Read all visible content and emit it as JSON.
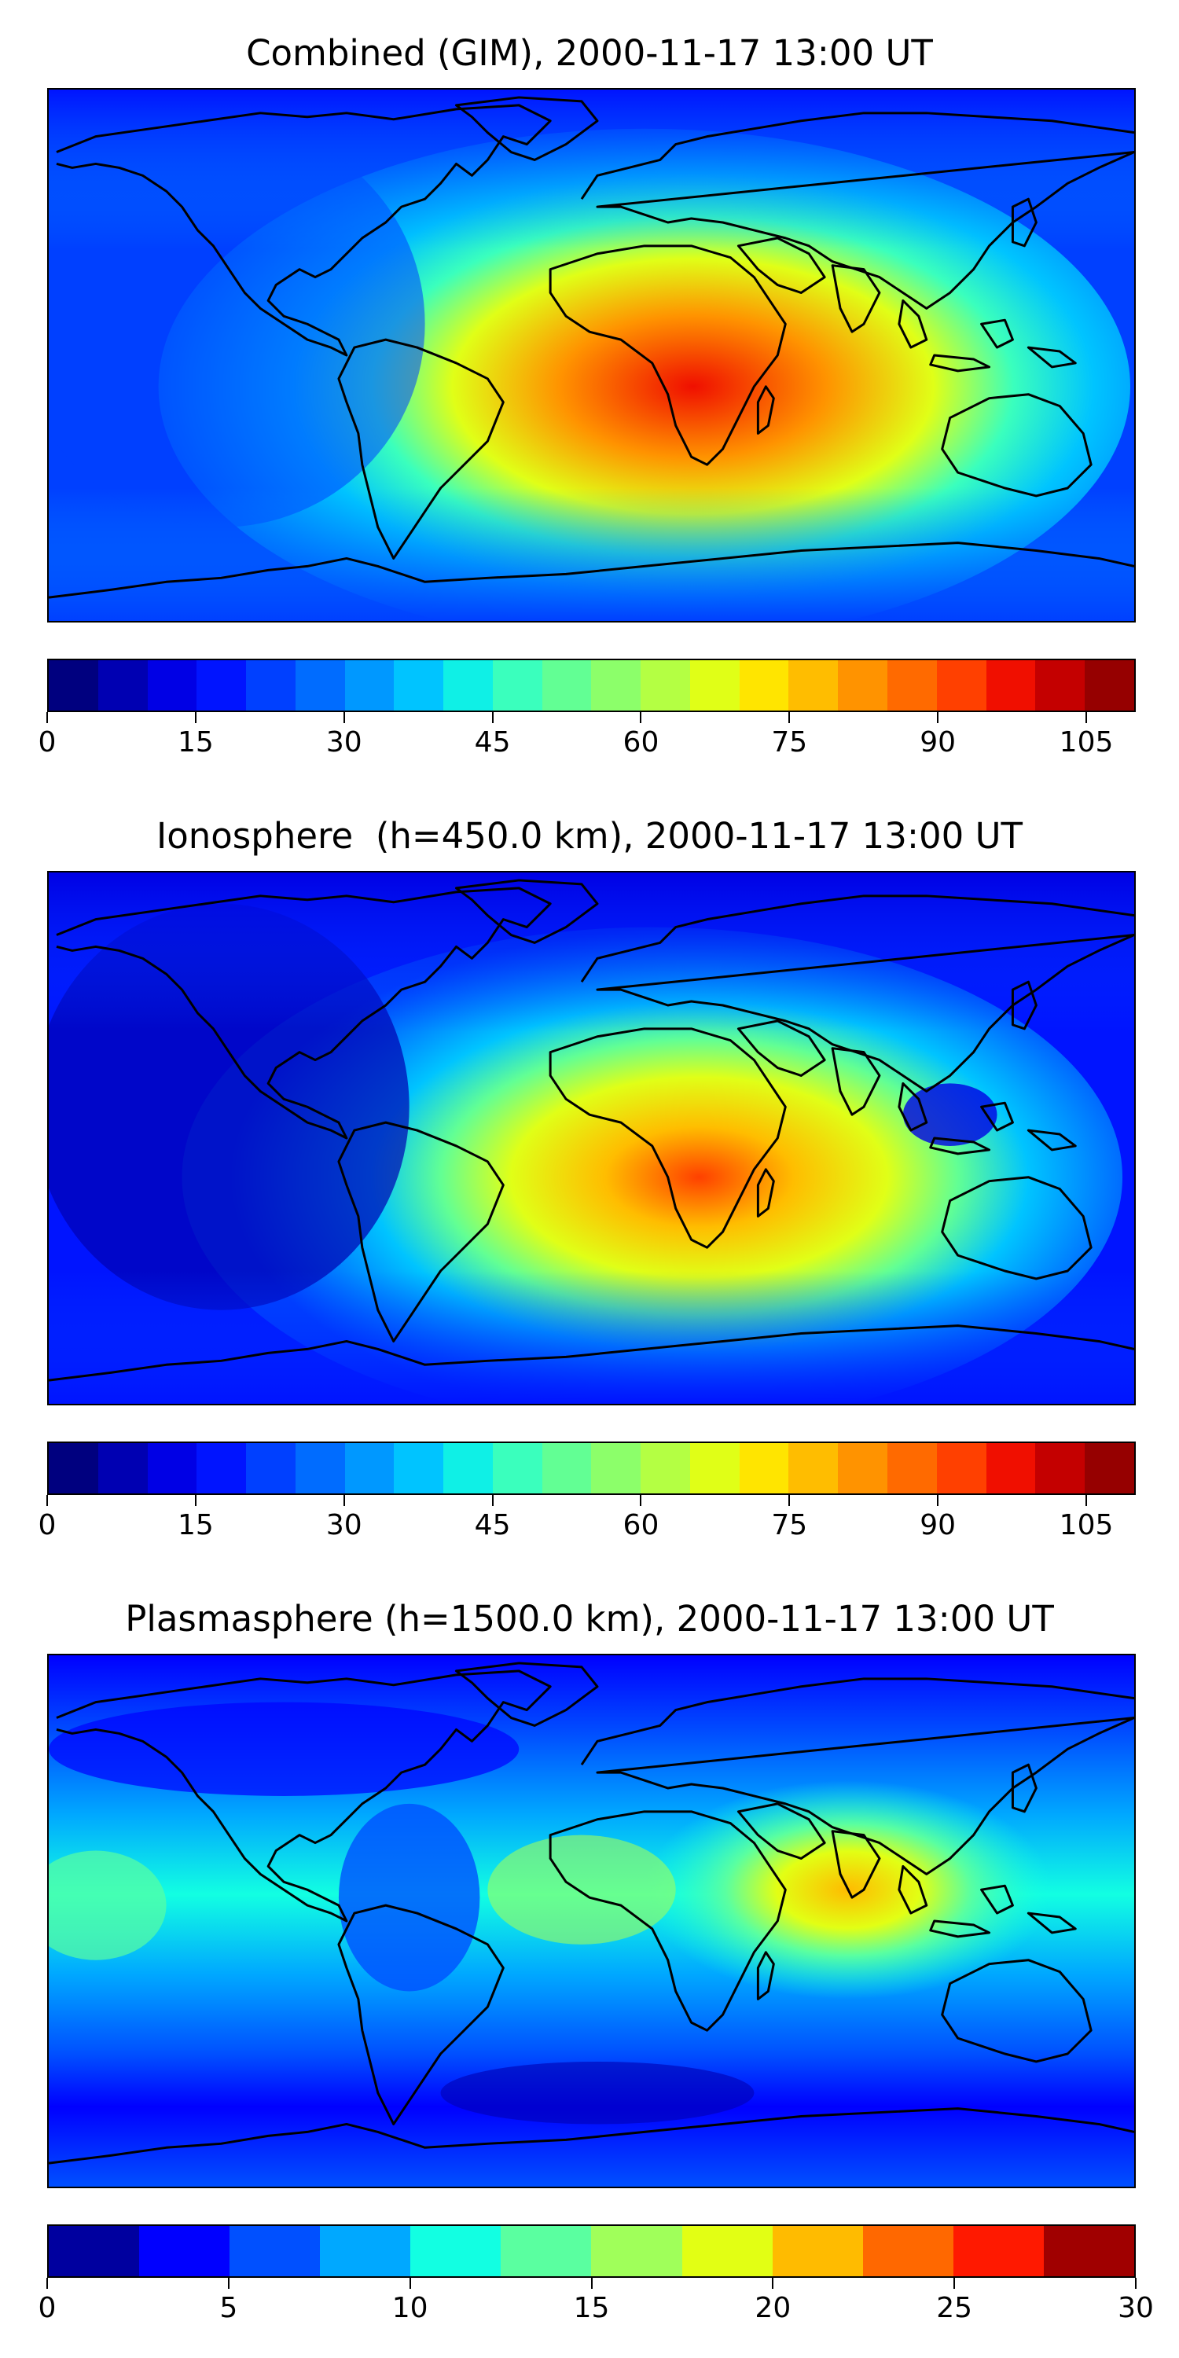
{
  "panels": [
    {
      "title": "Combined (GIM), 2000-11-17 13:00 UT",
      "colorbar": {
        "min": 0,
        "max": 110,
        "tick_labels": [
          "0",
          "15",
          "30",
          "45",
          "60",
          "75",
          "90",
          "105"
        ],
        "tick_values": [
          0,
          15,
          30,
          45,
          60,
          75,
          90,
          105
        ],
        "colors": [
          "#00007f",
          "#0000b2",
          "#0000e5",
          "#0014ff",
          "#0040ff",
          "#006cff",
          "#0098ff",
          "#00c4ff",
          "#0ff0e6",
          "#3affbd",
          "#62ff94",
          "#8cff6a",
          "#b4ff43",
          "#e0ff17",
          "#ffe500",
          "#ffbd00",
          "#ff9300",
          "#ff6a00",
          "#ff4000",
          "#f00f00",
          "#c40000",
          "#960000"
        ]
      }
    },
    {
      "title": "Ionosphere  (h=450.0 km), 2000-11-17 13:00 UT",
      "colorbar": {
        "min": 0,
        "max": 110,
        "tick_labels": [
          "0",
          "15",
          "30",
          "45",
          "60",
          "75",
          "90",
          "105"
        ],
        "tick_values": [
          0,
          15,
          30,
          45,
          60,
          75,
          90,
          105
        ],
        "colors": [
          "#00007f",
          "#0000b2",
          "#0000e5",
          "#0014ff",
          "#0040ff",
          "#006cff",
          "#0098ff",
          "#00c4ff",
          "#0ff0e6",
          "#3affbd",
          "#62ff94",
          "#8cff6a",
          "#b4ff43",
          "#e0ff17",
          "#ffe500",
          "#ffbd00",
          "#ff9300",
          "#ff6a00",
          "#ff4000",
          "#f00f00",
          "#c40000",
          "#960000"
        ]
      }
    },
    {
      "title": "Plasmasphere (h=1500.0 km), 2000-11-17 13:00 UT",
      "colorbar": {
        "min": 0,
        "max": 30,
        "tick_labels": [
          "0",
          "5",
          "10",
          "15",
          "20",
          "25",
          "30"
        ],
        "tick_values": [
          0,
          5,
          10,
          15,
          20,
          25,
          30
        ],
        "colors": [
          "#00009f",
          "#0000ff",
          "#0050ff",
          "#00a8ff",
          "#12ffe2",
          "#5affa0",
          "#a0ff5a",
          "#e2ff14",
          "#ffbb00",
          "#ff6800",
          "#ff1900",
          "#a00000"
        ]
      }
    }
  ]
}
